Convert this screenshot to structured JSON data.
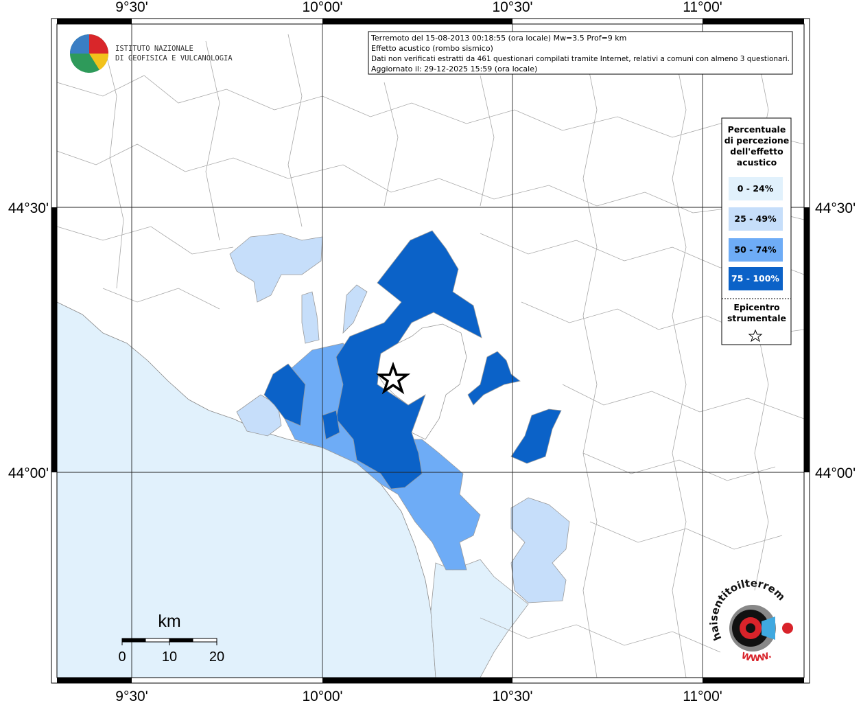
{
  "map": {
    "x_labels": [
      "9°30'",
      "10°00'",
      "10°30'",
      "11°00'"
    ],
    "y_labels": [
      "44°30'",
      "44°00'"
    ],
    "info_lines": [
      "Terremoto del 15-08-2013 00:18:55 (ora locale) Mw=3.5 Prof=9 km",
      "Effetto acustico (rombo sismico)",
      "Dati non verificati estratti da 461 questionari compilati tramite Internet, relativi a comuni con almeno 3 questionari.",
      "Aggiornato il: 29-12-2025 15:59 (ora locale)"
    ],
    "institute_lines": [
      "ISTITUTO NAZIONALE",
      "DI GEOFISICA E VULCANOLOGIA"
    ],
    "legend": {
      "title_lines": [
        "Percentuale",
        "di percezione",
        "dell'effetto",
        "acustico"
      ],
      "classes": [
        {
          "label": "0 - 24%",
          "color": "#e1f1fc"
        },
        {
          "label": "25 - 49%",
          "color": "#c6defa"
        },
        {
          "label": "50 - 74%",
          "color": "#6eacf6"
        },
        {
          "label": "75 - 100%",
          "color": "#0b62c8"
        }
      ],
      "epicenter_lines": [
        "Epicentro",
        "strumentale"
      ]
    },
    "scale": {
      "unit": "km",
      "ticks": [
        0,
        10,
        20
      ],
      "max": 20
    },
    "site_logo": {
      "text": "haisentitoilterremoto.it",
      "www": "WWW."
    }
  }
}
